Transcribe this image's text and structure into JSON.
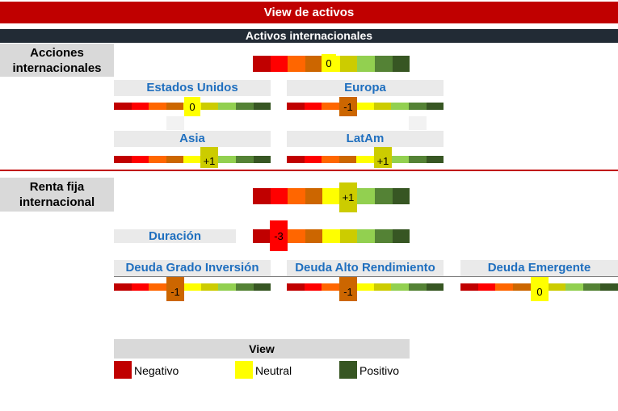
{
  "title": "View de activos",
  "section_header": "Activos internacionales",
  "scale_colors": [
    "#c00000",
    "#ff0000",
    "#ff6600",
    "#cc6600",
    "#ffff00",
    "#cccc00",
    "#92d050",
    "#548235",
    "#375623"
  ],
  "groups": [
    {
      "label": "Acciones internacionales",
      "value": "0"
    },
    {
      "label": "Renta fija internacional",
      "value": "+1"
    }
  ],
  "regions": [
    {
      "label": "Estados Unidos",
      "value": "0"
    },
    {
      "label": "Europa",
      "value": "-1"
    },
    {
      "label": "Asia",
      "value": "+1"
    },
    {
      "label": "LatAm",
      "value": "+1"
    }
  ],
  "duration": {
    "label": "Duración",
    "value": "-3"
  },
  "debt": [
    {
      "label": "Deuda Grado Inversión",
      "value": "-1"
    },
    {
      "label": "Deuda Alto Rendimiento",
      "value": "-1"
    },
    {
      "label": "Deuda Emergente",
      "value": "0"
    }
  ],
  "legend": {
    "title": "View",
    "items": [
      {
        "label": "Negativo",
        "color": "#c00000"
      },
      {
        "label": "Neutral",
        "color": "#ffff00"
      },
      {
        "label": "Positivo",
        "color": "#375623"
      }
    ]
  }
}
